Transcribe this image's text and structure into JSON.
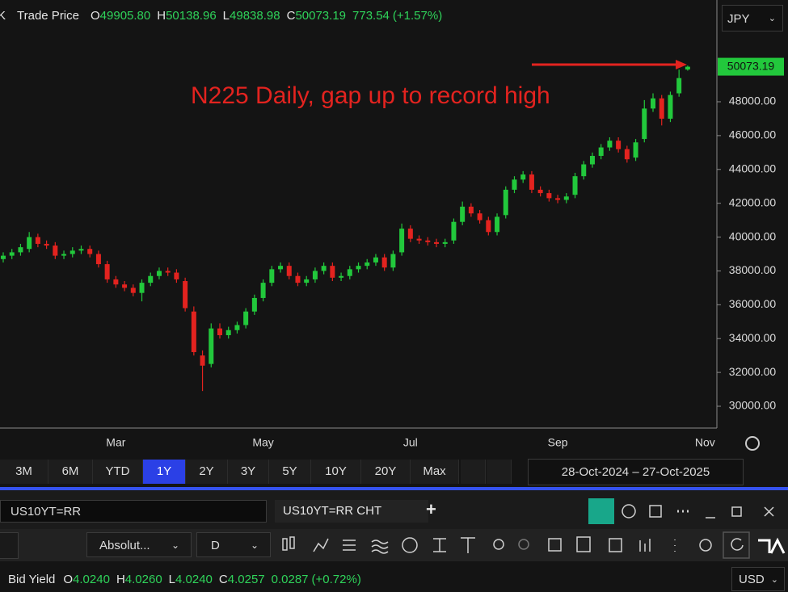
{
  "header": {
    "symbol": "K",
    "name": "Trade Price",
    "o_label": "O",
    "o_value": "49905.80",
    "h_label": "H",
    "h_value": "50138.96",
    "l_label": "L",
    "l_value": "49838.98",
    "c_label": "C",
    "c_value": "50073.19",
    "change": "773.54",
    "change_pct": "(+1.57%)",
    "currency": "JPY"
  },
  "chart_data": {
    "type": "candlestick",
    "annotation": "N225 Daily, gap up to record high",
    "up_color": "#22c83c",
    "down_color": "#e3231f",
    "annotation_color": "#e3231f",
    "grid": false,
    "ylim": [
      28711,
      54016
    ],
    "yticks": [
      {
        "value": 30000,
        "label": "30000.00"
      },
      {
        "value": 32000,
        "label": "32000.00"
      },
      {
        "value": 34000,
        "label": "34000.00"
      },
      {
        "value": 36000,
        "label": "36000.00"
      },
      {
        "value": 38000,
        "label": "38000.00"
      },
      {
        "value": 40000,
        "label": "40000.00"
      },
      {
        "value": 42000,
        "label": "42000.00"
      },
      {
        "value": 44000,
        "label": "44000.00"
      },
      {
        "value": 46000,
        "label": "46000.00"
      },
      {
        "value": 48000,
        "label": "48000.00"
      }
    ],
    "categories": [
      null,
      null,
      null,
      null,
      null,
      null,
      null,
      null,
      null,
      null,
      null,
      null,
      null,
      "Mar",
      null,
      null,
      null,
      null,
      null,
      null,
      null,
      null,
      null,
      null,
      null,
      null,
      null,
      null,
      null,
      null,
      "May",
      null,
      null,
      null,
      null,
      null,
      null,
      null,
      null,
      null,
      null,
      null,
      null,
      null,
      null,
      null,
      null,
      "Jul",
      null,
      null,
      null,
      null,
      null,
      null,
      null,
      null,
      null,
      null,
      null,
      null,
      null,
      null,
      null,
      null,
      "Sep",
      null,
      null,
      null,
      null,
      null,
      null,
      null,
      null,
      null,
      null,
      null,
      null,
      null,
      null,
      null,
      null,
      "Nov"
    ],
    "open": [
      38700,
      38900,
      39100,
      39300,
      40000,
      39600,
      39500,
      38900,
      39000,
      39200,
      39300,
      39000,
      38400,
      37500,
      37200,
      37000,
      36700,
      37300,
      37700,
      38000,
      37900,
      37400,
      35600,
      33000,
      32500,
      34600,
      34200,
      34500,
      34800,
      35600,
      36400,
      37300,
      38100,
      38300,
      37700,
      37300,
      37500,
      38000,
      38300,
      37600,
      37700,
      38100,
      38300,
      38500,
      38800,
      38200,
      39100,
      40500,
      39900,
      39800,
      39700,
      39600,
      39800,
      40900,
      41800,
      41400,
      41000,
      40300,
      41300,
      42800,
      43400,
      43700,
      42800,
      42600,
      42300,
      42200,
      42500,
      43600,
      44300,
      44800,
      45300,
      45700,
      45200,
      44700,
      45800,
      47600,
      48200,
      47000,
      48500,
      49905.8,
      null,
      null
    ],
    "high": [
      39100,
      39300,
      39600,
      40300,
      40200,
      39800,
      39700,
      39200,
      39400,
      39500,
      39500,
      39200,
      38600,
      37700,
      37400,
      37200,
      37500,
      37900,
      38200,
      38200,
      38100,
      37600,
      35900,
      33300,
      34900,
      34900,
      34700,
      35000,
      35800,
      36600,
      37500,
      38300,
      38500,
      38500,
      37900,
      37700,
      38200,
      38500,
      38500,
      37900,
      38300,
      38500,
      38700,
      39000,
      39000,
      39200,
      40800,
      40700,
      40100,
      40000,
      39900,
      39900,
      41100,
      42100,
      42000,
      41600,
      41200,
      41400,
      43000,
      43600,
      43900,
      43900,
      43000,
      42800,
      42500,
      42600,
      43800,
      44500,
      45000,
      45500,
      45900,
      45900,
      45400,
      45800,
      48100,
      48500,
      48400,
      48600,
      49900,
      50138.96,
      null,
      null
    ],
    "low": [
      38500,
      38700,
      38900,
      39100,
      39400,
      39300,
      38700,
      38700,
      38800,
      39000,
      38800,
      38200,
      37300,
      37000,
      36800,
      36500,
      36200,
      37100,
      37500,
      37700,
      37300,
      35600,
      33000,
      30900,
      32300,
      34000,
      34000,
      34300,
      34600,
      35400,
      36200,
      37100,
      37900,
      37500,
      37100,
      37100,
      37300,
      37800,
      37400,
      37400,
      37500,
      37900,
      38100,
      38300,
      38000,
      38000,
      38900,
      39700,
      39600,
      39500,
      39400,
      39400,
      39600,
      40700,
      41200,
      40800,
      40100,
      40100,
      41100,
      42600,
      43200,
      42600,
      42400,
      42100,
      42000,
      42000,
      42300,
      43400,
      44100,
      44600,
      45100,
      45000,
      44400,
      44500,
      45600,
      47400,
      46600,
      46800,
      48300,
      49838.98,
      null,
      null
    ],
    "close": [
      38900,
      39100,
      39400,
      40000,
      39600,
      39500,
      38900,
      39000,
      39200,
      39300,
      39000,
      38400,
      37500,
      37200,
      37000,
      36700,
      37300,
      37700,
      38000,
      37900,
      37500,
      35800,
      33200,
      32400,
      34600,
      34200,
      34500,
      34800,
      35600,
      36400,
      37300,
      38100,
      38300,
      37700,
      37300,
      37500,
      38000,
      38300,
      37600,
      37700,
      38100,
      38300,
      38500,
      38800,
      38200,
      39000,
      40500,
      39900,
      39800,
      39700,
      39600,
      39700,
      40900,
      41800,
      41400,
      41000,
      40300,
      41200,
      42800,
      43400,
      43700,
      42800,
      42600,
      42300,
      42200,
      42400,
      43600,
      44300,
      44800,
      45300,
      45700,
      45200,
      44600,
      45600,
      47600,
      48200,
      47000,
      48400,
      49400,
      50073.19,
      null,
      null
    ]
  },
  "range_buttons": [
    "3M",
    "6M",
    "YTD",
    "1Y",
    "2Y",
    "3Y",
    "5Y",
    "10Y",
    "20Y",
    "Max"
  ],
  "active_range": "1Y",
  "date_range": {
    "from": "28-Oct-2024",
    "sep": "–",
    "to": "27-Oct-2025"
  },
  "panel": {
    "input": "US10YT=RR",
    "tab": "US10YT=RR CHT",
    "add": "+",
    "view": "Absolut...",
    "interval": "D",
    "legend": {
      "name": "Bid Yield",
      "o_label": "O",
      "o_value": "4.0240",
      "h_label": "H",
      "h_value": "4.0260",
      "l_label": "L",
      "l_value": "4.0240",
      "c_label": "C",
      "c_value": "4.0257",
      "change": "0.0287",
      "change_pct": "(+0.72%)"
    },
    "currency": "USD"
  }
}
